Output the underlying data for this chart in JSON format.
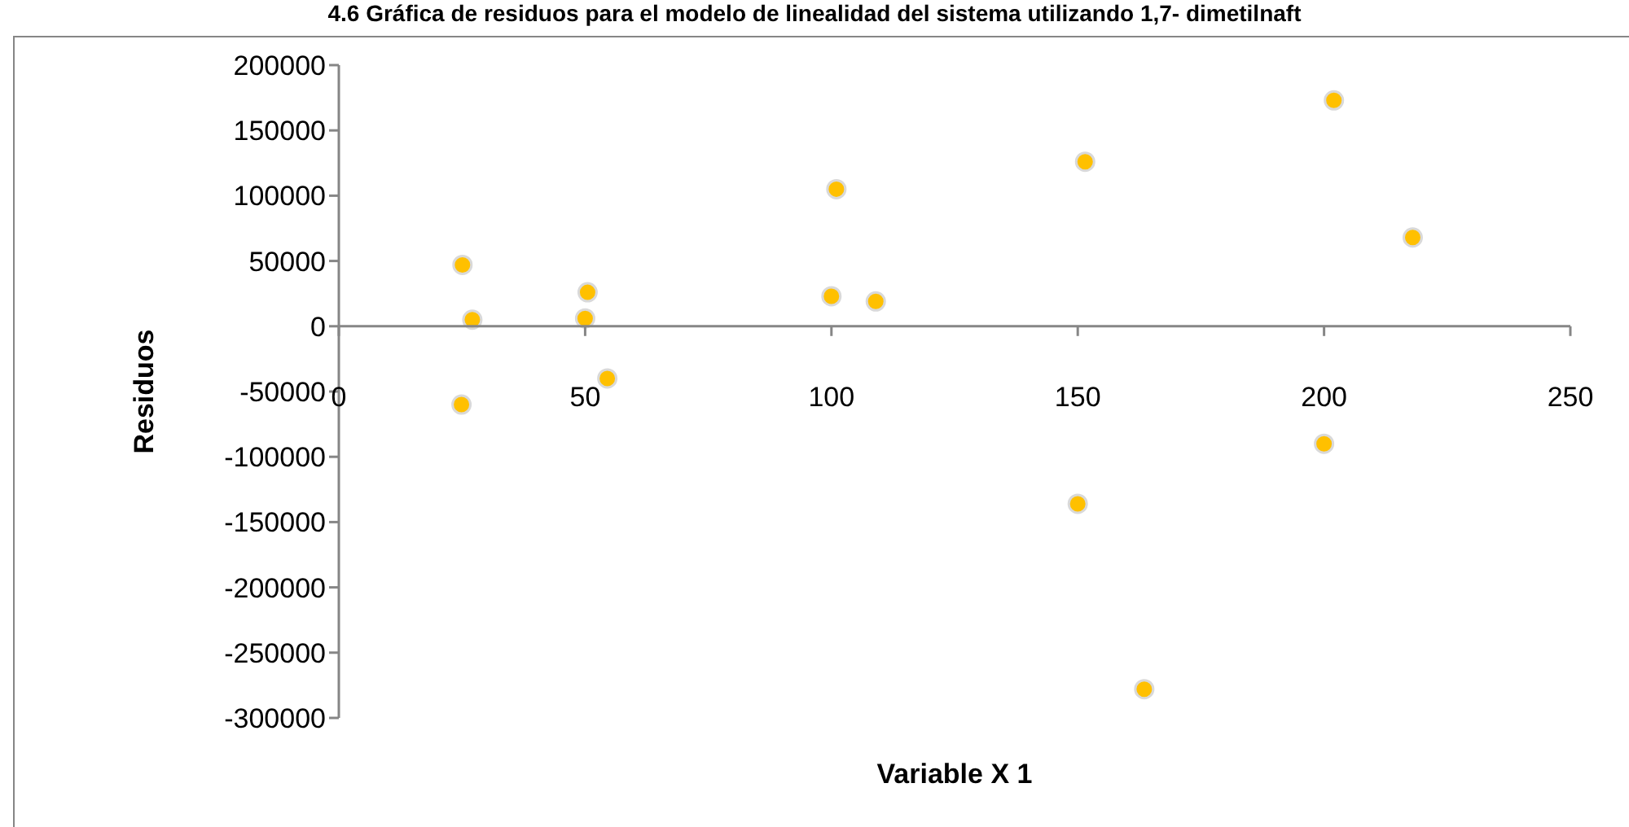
{
  "chart_data": {
    "type": "scatter",
    "title": "4.6 Gráfica de residuos para el modelo de linealidad del sistema utilizando 1,7- dimetilnaft",
    "xlabel": "Variable X 1",
    "ylabel": "Residuos",
    "x": [
      25.1,
      27.1,
      24.9,
      50.5,
      50,
      54.5,
      101,
      100,
      109,
      151.5,
      202,
      218,
      200,
      150,
      163.5
    ],
    "series": [
      {
        "color": "#ffc000",
        "values": [
          47000,
          5000,
          -60000,
          26000,
          6000,
          -40000,
          105000,
          23000,
          19000,
          126000,
          173000,
          68000,
          -90000,
          -136000,
          -278000
        ]
      }
    ],
    "xlim": [
      0,
      250
    ],
    "xticks": [
      0,
      50,
      100,
      150,
      200,
      250
    ],
    "ylim": [
      -300000,
      200000
    ],
    "yticks": [
      -300000,
      -250000,
      -200000,
      -150000,
      -100000,
      -50000,
      0,
      50000,
      100000,
      150000,
      200000
    ],
    "grid": false,
    "marker": "circle"
  }
}
